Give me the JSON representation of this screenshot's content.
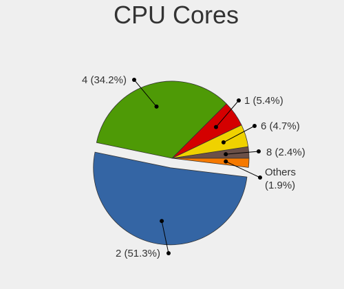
{
  "chart_data": {
    "type": "pie",
    "title": "CPU Cores",
    "slices": [
      {
        "label": "8 (2.4%)",
        "category": "8",
        "value": 2.4,
        "color": "#6b5048"
      },
      {
        "label": "6 (4.7%)",
        "category": "6",
        "value": 4.7,
        "color": "#efd200"
      },
      {
        "label": "1 (5.4%)",
        "category": "1",
        "value": 5.4,
        "color": "#d40000"
      },
      {
        "label": "4 (34.2%)",
        "category": "4",
        "value": 34.2,
        "color": "#4e9a06"
      },
      {
        "label": "2 (51.3%)",
        "category": "2",
        "value": 51.3,
        "color": "#3465a4",
        "exploded": true
      },
      {
        "label": [
          "Others",
          "(1.9%)"
        ],
        "category": "Others",
        "value": 1.9,
        "color": "#f57900"
      }
    ],
    "legend": "none"
  }
}
